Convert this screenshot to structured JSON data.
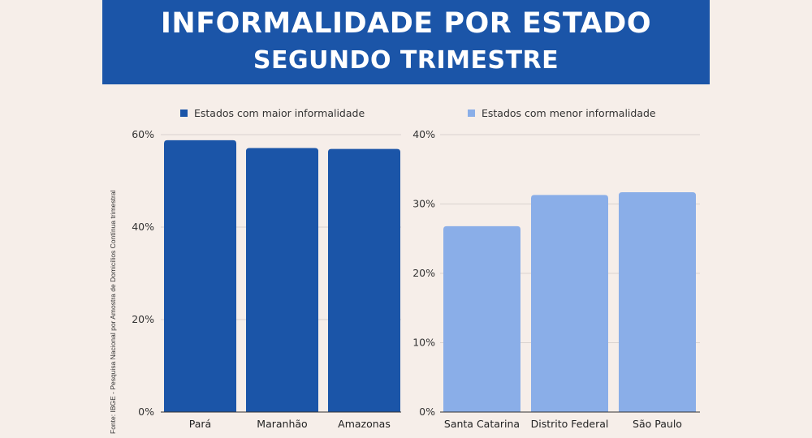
{
  "header": {
    "title_line1": "INFORMALIDADE POR ESTADO",
    "title_line2": "SEGUNDO TRIMESTRE",
    "background": "#1b55a8"
  },
  "source_note": "Fonte: IBGE - Pesquisa Nacional por Amostra de Domicílios Contínua trimestral",
  "chart_data": [
    {
      "type": "bar",
      "legend": "Estados com maior informalidade",
      "color": "#1b55a8",
      "categories": [
        "Pará",
        "Maranhão",
        "Amazonas"
      ],
      "values": [
        58.8,
        57.1,
        56.9
      ],
      "ylim": [
        0,
        60
      ],
      "yticks": [
        0,
        20,
        40,
        60
      ],
      "ytick_labels": [
        "0%",
        "20%",
        "40%",
        "60%"
      ],
      "grid": true
    },
    {
      "type": "bar",
      "legend": "Estados com menor informalidade",
      "color": "#8aaee8",
      "categories": [
        "Santa Catarina",
        "Distrito Federal",
        "São Paulo"
      ],
      "values": [
        26.8,
        31.3,
        31.7
      ],
      "ylim": [
        0,
        40
      ],
      "yticks": [
        0,
        10,
        20,
        30,
        40
      ],
      "ytick_labels": [
        "0%",
        "10%",
        "20%",
        "30%",
        "40%"
      ],
      "grid": true
    }
  ]
}
